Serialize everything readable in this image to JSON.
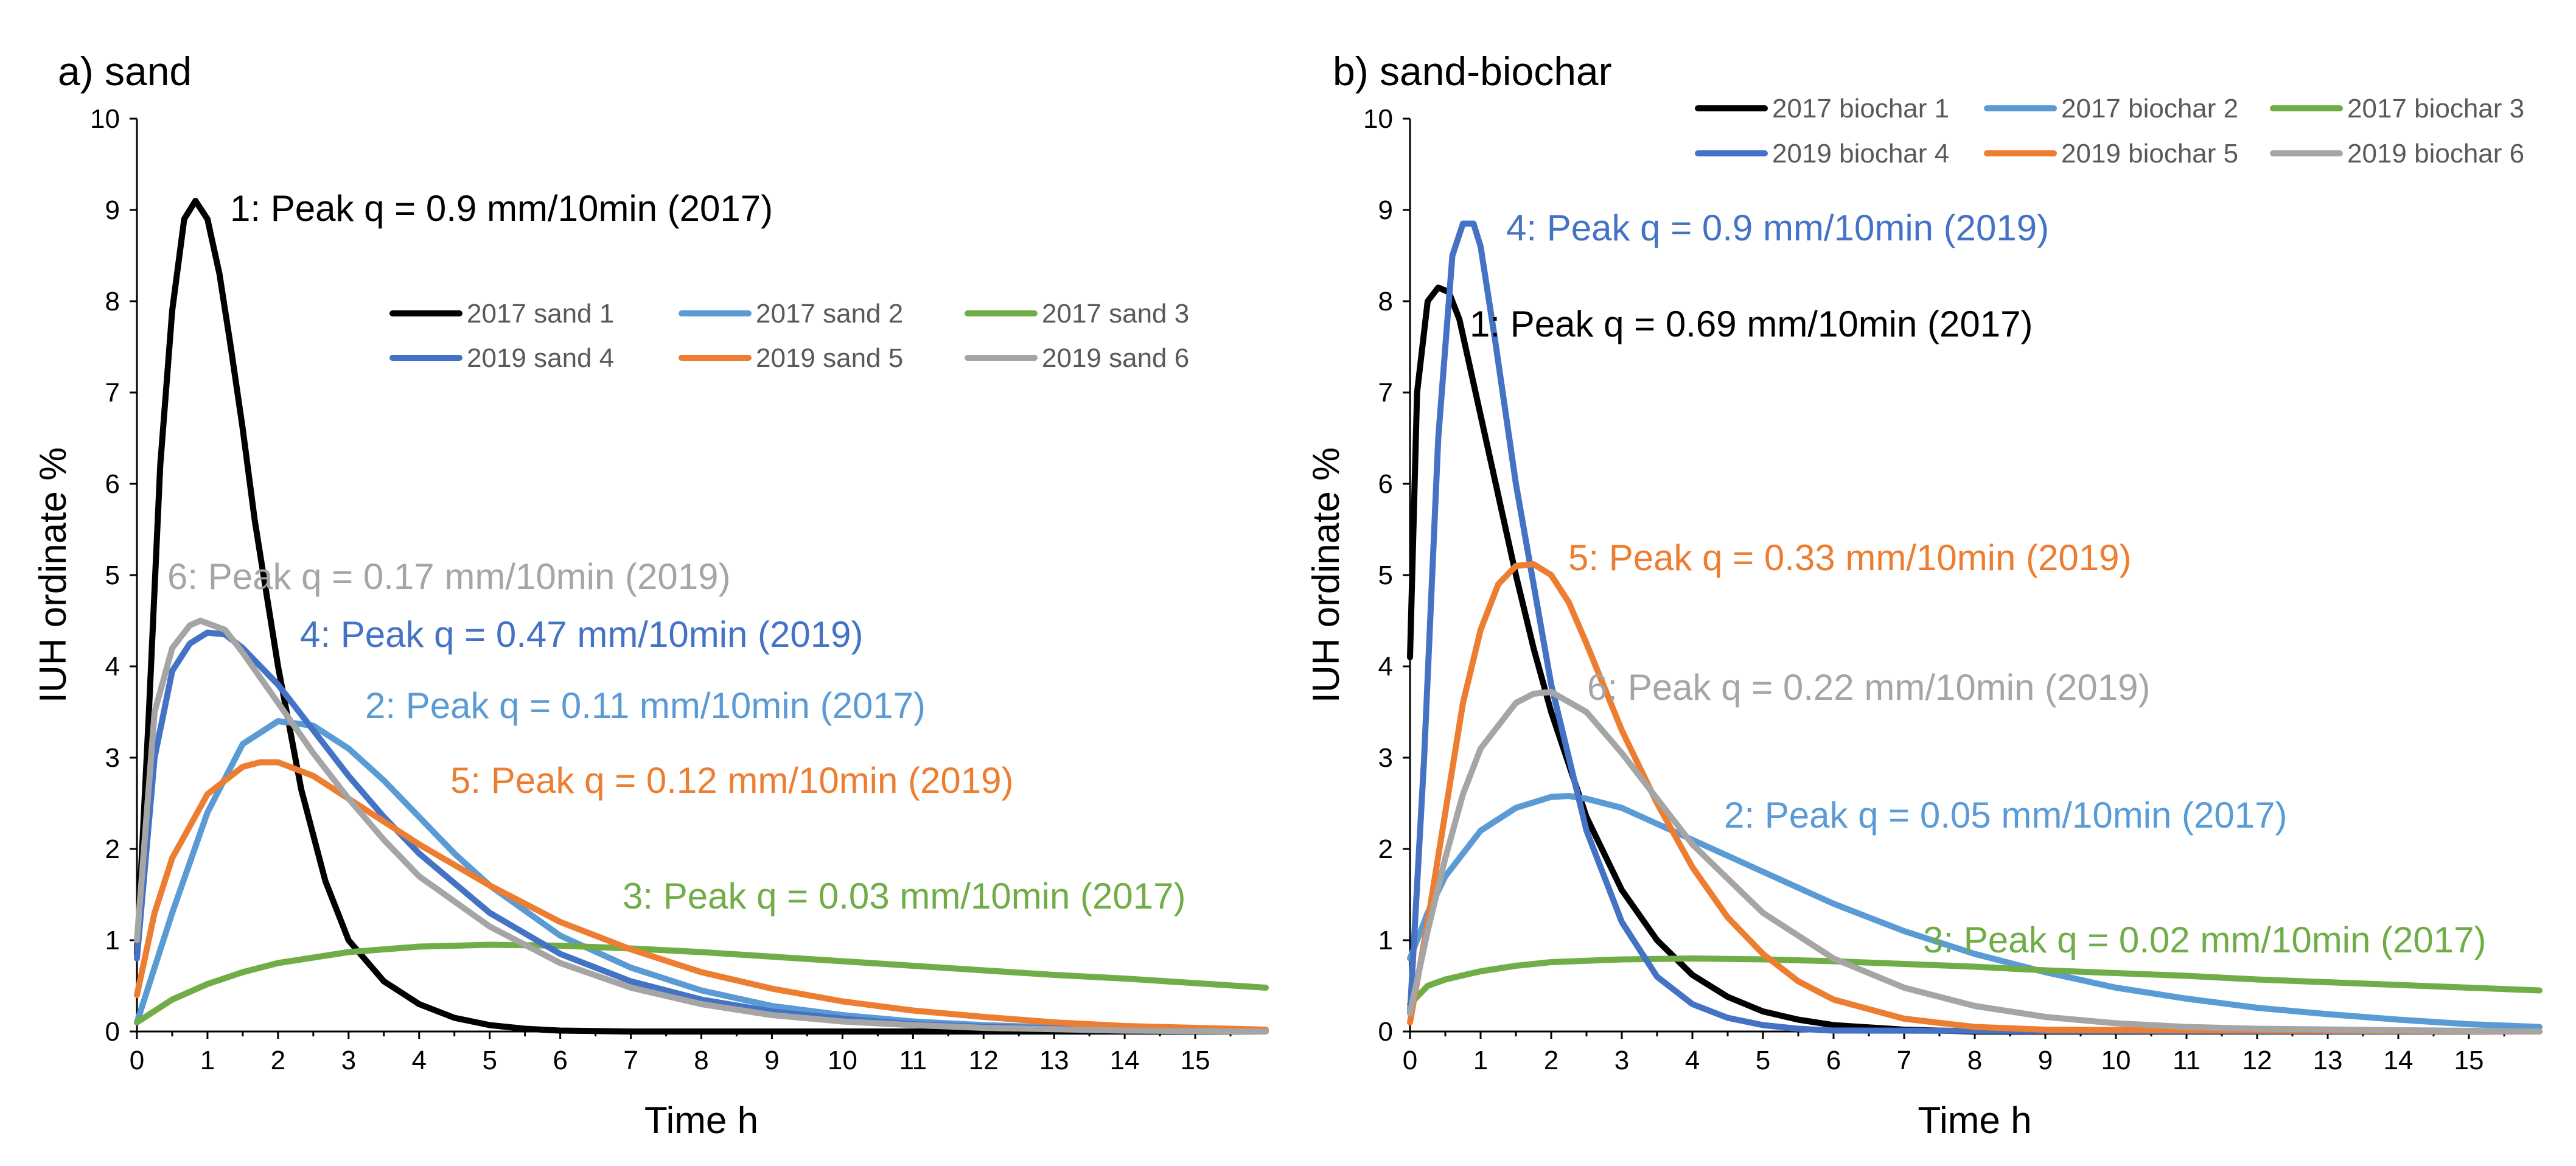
{
  "chart_data": [
    {
      "type": "line",
      "title": "a) sand",
      "xlabel": "Time h",
      "ylabel": "IUH ordinate %",
      "xlim": [
        0,
        16
      ],
      "ylim": [
        0,
        10
      ],
      "xticks": [
        "0",
        "1",
        "2",
        "3",
        "4",
        "5",
        "6",
        "7",
        "8",
        "9",
        "10",
        "11",
        "12",
        "13",
        "14",
        "15"
      ],
      "yticks": [
        "0",
        "1",
        "2",
        "3",
        "4",
        "5",
        "6",
        "7",
        "8",
        "9",
        "10"
      ],
      "legend_position": "top-right",
      "series": [
        {
          "name": "2017 sand 1",
          "color": "#000000",
          "x": [
            0,
            0.17,
            0.33,
            0.5,
            0.67,
            0.83,
            1,
            1.17,
            1.33,
            1.5,
            1.67,
            2,
            2.33,
            2.67,
            3,
            3.5,
            4,
            4.5,
            5,
            5.5,
            6,
            7,
            8,
            10,
            16
          ],
          "y": [
            0.85,
            3.5,
            6.2,
            7.9,
            8.9,
            9.1,
            8.9,
            8.3,
            7.5,
            6.6,
            5.6,
            4.0,
            2.65,
            1.65,
            1.0,
            0.55,
            0.3,
            0.15,
            0.07,
            0.03,
            0.01,
            0,
            0,
            0,
            0
          ]
        },
        {
          "name": "2017 sand 2",
          "color": "#5B9BD5",
          "x": [
            0,
            0.5,
            1,
            1.5,
            2,
            2.5,
            3,
            3.5,
            4,
            4.5,
            5,
            6,
            7,
            8,
            9,
            10,
            11,
            12,
            14,
            16
          ],
          "y": [
            0.1,
            1.3,
            2.4,
            3.15,
            3.4,
            3.35,
            3.1,
            2.75,
            2.35,
            1.95,
            1.6,
            1.05,
            0.7,
            0.45,
            0.28,
            0.18,
            0.11,
            0.07,
            0.02,
            0.01
          ]
        },
        {
          "name": "2017 sand 3",
          "color": "#70AD47",
          "x": [
            0,
            0.5,
            1,
            1.5,
            2,
            3,
            4,
            5,
            6,
            7,
            8,
            9,
            10,
            11,
            12,
            13,
            14,
            15,
            16
          ],
          "y": [
            0.1,
            0.35,
            0.52,
            0.65,
            0.75,
            0.87,
            0.93,
            0.95,
            0.94,
            0.91,
            0.87,
            0.82,
            0.77,
            0.72,
            0.67,
            0.62,
            0.58,
            0.53,
            0.48
          ]
        },
        {
          "name": "2019 sand 4",
          "color": "#4472C4",
          "x": [
            0,
            0.25,
            0.5,
            0.75,
            1,
            1.25,
            1.5,
            2,
            2.5,
            3,
            3.5,
            4,
            5,
            6,
            7,
            8,
            9,
            10,
            11,
            12,
            14,
            16
          ],
          "y": [
            0.8,
            3.0,
            3.95,
            4.25,
            4.37,
            4.35,
            4.2,
            3.8,
            3.3,
            2.8,
            2.35,
            1.95,
            1.3,
            0.85,
            0.55,
            0.35,
            0.22,
            0.14,
            0.08,
            0.05,
            0.02,
            0.01
          ]
        },
        {
          "name": "2019 sand 5",
          "color": "#ED7D31",
          "x": [
            0,
            0.25,
            0.5,
            1,
            1.5,
            1.75,
            2,
            2.5,
            3,
            3.5,
            4,
            5,
            6,
            7,
            8,
            9,
            10,
            11,
            12,
            13,
            14,
            16
          ],
          "y": [
            0.4,
            1.3,
            1.9,
            2.6,
            2.9,
            2.95,
            2.95,
            2.8,
            2.55,
            2.3,
            2.05,
            1.6,
            1.2,
            0.9,
            0.65,
            0.47,
            0.33,
            0.23,
            0.16,
            0.1,
            0.06,
            0.02
          ]
        },
        {
          "name": "2019 sand 6",
          "color": "#A5A5A5",
          "x": [
            0,
            0.25,
            0.5,
            0.75,
            0.9,
            1.25,
            1.5,
            2,
            2.5,
            3,
            3.5,
            4,
            5,
            6,
            7,
            8,
            9,
            10,
            11,
            12,
            14,
            16
          ],
          "y": [
            1.0,
            3.5,
            4.2,
            4.45,
            4.5,
            4.4,
            4.15,
            3.6,
            3.05,
            2.55,
            2.1,
            1.7,
            1.15,
            0.75,
            0.48,
            0.3,
            0.18,
            0.11,
            0.07,
            0.04,
            0.01,
            0
          ]
        }
      ],
      "annotations": [
        {
          "series": "2017 sand 1",
          "text": "1: Peak q = 0.9 mm/10min (2017)",
          "color": "#000000"
        },
        {
          "series": "2019 sand 6",
          "text": "6: Peak q = 0.17 mm/10min (2019)",
          "color": "#A5A5A5"
        },
        {
          "series": "2019 sand 4",
          "text": "4: Peak q = 0.47 mm/10min (2019)",
          "color": "#4472C4"
        },
        {
          "series": "2017 sand 2",
          "text": "2: Peak q = 0.11 mm/10min (2017)",
          "color": "#5B9BD5"
        },
        {
          "series": "2019 sand 5",
          "text": "5: Peak q = 0.12 mm/10min (2019)",
          "color": "#ED7D31"
        },
        {
          "series": "2017 sand 3",
          "text": "3: Peak q = 0.03 mm/10min (2017)",
          "color": "#70AD47"
        }
      ]
    },
    {
      "type": "line",
      "title": "b) sand-biochar",
      "xlabel": "Time h",
      "ylabel": "IUH ordinate %",
      "xlim": [
        0,
        16
      ],
      "ylim": [
        0,
        10
      ],
      "xticks": [
        "0",
        "1",
        "2",
        "3",
        "4",
        "5",
        "6",
        "7",
        "8",
        "9",
        "10",
        "11",
        "12",
        "13",
        "14",
        "15"
      ],
      "yticks": [
        "0",
        "1",
        "2",
        "3",
        "4",
        "5",
        "6",
        "7",
        "8",
        "9",
        "10"
      ],
      "legend_position": "top-right",
      "series": [
        {
          "name": "2017 biochar 1",
          "color": "#000000",
          "x": [
            0,
            0.1,
            0.25,
            0.4,
            0.55,
            0.7,
            0.9,
            1.1,
            1.3,
            1.5,
            1.75,
            2,
            2.5,
            3,
            3.5,
            4,
            4.5,
            5,
            5.5,
            6,
            7,
            8,
            10,
            16
          ],
          "y": [
            4.1,
            7.0,
            8.0,
            8.15,
            8.1,
            7.8,
            7.1,
            6.4,
            5.7,
            5.0,
            4.2,
            3.5,
            2.35,
            1.55,
            1.0,
            0.62,
            0.38,
            0.22,
            0.13,
            0.07,
            0.02,
            0,
            0,
            0
          ]
        },
        {
          "name": "2017 biochar 2",
          "color": "#5B9BD5",
          "x": [
            0,
            0.25,
            0.5,
            1,
            1.5,
            2,
            2.25,
            2.5,
            3,
            4,
            5,
            6,
            7,
            8,
            9,
            10,
            11,
            12,
            13,
            14,
            15,
            16
          ],
          "y": [
            0.8,
            1.3,
            1.7,
            2.2,
            2.45,
            2.57,
            2.58,
            2.55,
            2.45,
            2.1,
            1.75,
            1.4,
            1.1,
            0.85,
            0.65,
            0.48,
            0.36,
            0.26,
            0.19,
            0.13,
            0.08,
            0.05
          ]
        },
        {
          "name": "2017 biochar 3",
          "color": "#70AD47",
          "x": [
            0,
            0.25,
            0.5,
            1,
            1.5,
            2,
            3,
            4,
            5,
            6,
            7,
            8,
            9,
            10,
            11,
            12,
            13,
            14,
            15,
            16
          ],
          "y": [
            0.3,
            0.5,
            0.57,
            0.66,
            0.72,
            0.76,
            0.79,
            0.8,
            0.79,
            0.77,
            0.74,
            0.71,
            0.67,
            0.64,
            0.61,
            0.57,
            0.54,
            0.51,
            0.48,
            0.45
          ]
        },
        {
          "name": "2019 biochar 4",
          "color": "#4472C4",
          "x": [
            0,
            0.2,
            0.4,
            0.6,
            0.75,
            0.9,
            1,
            1.2,
            1.5,
            2,
            2.5,
            3,
            3.5,
            4,
            4.5,
            5,
            5.5,
            6,
            16
          ],
          "y": [
            0.2,
            3.0,
            6.5,
            8.5,
            8.85,
            8.85,
            8.6,
            7.6,
            6.0,
            3.8,
            2.2,
            1.2,
            0.6,
            0.3,
            0.15,
            0.07,
            0.03,
            0.01,
            0
          ]
        },
        {
          "name": "2019 biochar 5",
          "color": "#ED7D31",
          "x": [
            0,
            0.25,
            0.5,
            0.75,
            1,
            1.25,
            1.5,
            1.75,
            2,
            2.25,
            2.5,
            3,
            3.5,
            4,
            4.5,
            5,
            5.5,
            6,
            7,
            8,
            9,
            16
          ],
          "y": [
            0.1,
            1.2,
            2.4,
            3.6,
            4.4,
            4.9,
            5.1,
            5.12,
            5.0,
            4.7,
            4.25,
            3.3,
            2.5,
            1.8,
            1.25,
            0.85,
            0.55,
            0.35,
            0.14,
            0.05,
            0.02,
            0
          ]
        },
        {
          "name": "2019 biochar 6",
          "color": "#A5A5A5",
          "x": [
            0,
            0.25,
            0.5,
            0.75,
            1,
            1.5,
            1.75,
            2,
            2.5,
            3,
            3.5,
            4,
            5,
            6,
            7,
            8,
            9,
            10,
            11,
            12,
            16
          ],
          "y": [
            0.2,
            1.1,
            1.9,
            2.6,
            3.1,
            3.6,
            3.7,
            3.72,
            3.5,
            3.05,
            2.55,
            2.05,
            1.3,
            0.8,
            0.48,
            0.28,
            0.16,
            0.09,
            0.05,
            0.03,
            0
          ]
        }
      ],
      "annotations": [
        {
          "series": "2019 biochar 4",
          "text": "4: Peak q = 0.9 mm/10min (2019)",
          "color": "#4472C4"
        },
        {
          "series": "2017 biochar 1",
          "text": "1: Peak q = 0.69 mm/10min (2017)",
          "color": "#000000"
        },
        {
          "series": "2019 biochar 5",
          "text": "5: Peak q = 0.33 mm/10min (2019)",
          "color": "#ED7D31"
        },
        {
          "series": "2019 biochar 6",
          "text": "6: Peak q = 0.22 mm/10min (2019)",
          "color": "#A5A5A5"
        },
        {
          "series": "2017 biochar 2",
          "text": "2: Peak q = 0.05 mm/10min (2017)",
          "color": "#5B9BD5"
        },
        {
          "series": "2017 biochar 3",
          "text": "3: Peak q = 0.02 mm/10min (2017)",
          "color": "#70AD47"
        }
      ]
    }
  ]
}
